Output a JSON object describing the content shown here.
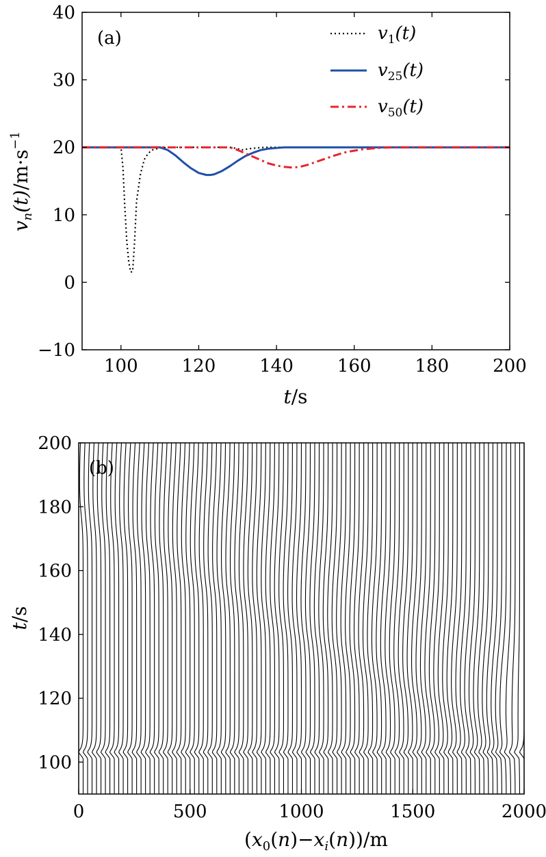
{
  "chart_data": [
    {
      "type": "line",
      "panel_label": "(a)",
      "xlabel": "t/s",
      "ylabel": "v_n(t)/m·s^-1",
      "xlim": [
        90,
        200
      ],
      "ylim": [
        -10,
        40
      ],
      "xticks": [
        100,
        120,
        140,
        160,
        180,
        200
      ],
      "yticks": [
        -10,
        0,
        10,
        20,
        30,
        40
      ],
      "xtick_labels": [
        "100",
        "120",
        "140",
        "160",
        "180",
        "200"
      ],
      "ytick_labels": [
        "−10",
        "0",
        "10",
        "20",
        "30",
        "40"
      ],
      "grid": false,
      "legend_position": "top-right",
      "series": [
        {
          "name": "v1(t)",
          "legend_base": "v",
          "legend_sub": "1",
          "legend_tail": "(t)",
          "color": "#000000",
          "style": "dotted",
          "x": [
            90,
            100,
            100.5,
            101,
            101.5,
            102,
            102.5,
            103,
            103.5,
            104,
            105,
            106,
            107,
            108,
            110,
            112,
            115,
            120,
            125,
            128,
            130,
            131,
            133,
            135,
            137,
            140,
            150,
            200
          ],
          "y": [
            20,
            20,
            17,
            11,
            6,
            3,
            1.5,
            1.6,
            6,
            12,
            16,
            18.2,
            19.1,
            19.6,
            19.9,
            20,
            20,
            20,
            20,
            20,
            19.8,
            19.6,
            19.8,
            19.9,
            20,
            20,
            20,
            20
          ]
        },
        {
          "name": "v25(t)",
          "legend_base": "v",
          "legend_sub": "25",
          "legend_tail": "(t)",
          "color": "#1f4fa8",
          "style": "solid",
          "x": [
            90,
            110,
            112,
            114,
            116,
            118,
            120,
            122,
            123,
            124,
            126,
            128,
            130,
            132,
            134,
            136,
            138,
            140,
            142,
            145,
            150,
            200
          ],
          "y": [
            20,
            20,
            19.6,
            18.8,
            17.8,
            16.9,
            16.2,
            15.9,
            15.9,
            16,
            16.5,
            17.2,
            18,
            18.7,
            19.2,
            19.6,
            19.8,
            19.9,
            20,
            20,
            20,
            20
          ]
        },
        {
          "name": "v50(t)",
          "legend_base": "v",
          "legend_sub": "50",
          "legend_tail": "(t)",
          "color": "#e8242b",
          "style": "dashdot",
          "x": [
            90,
            128,
            130,
            132,
            134,
            136,
            138,
            140,
            142,
            144,
            146,
            148,
            150,
            152,
            155,
            158,
            162,
            166,
            170,
            200
          ],
          "y": [
            20,
            20,
            19.6,
            19.1,
            18.6,
            18.1,
            17.6,
            17.3,
            17.1,
            17,
            17.1,
            17.4,
            17.8,
            18.2,
            18.8,
            19.3,
            19.7,
            19.9,
            20,
            20
          ]
        }
      ]
    },
    {
      "type": "line",
      "panel_label": "(b)",
      "xlabel": "(x0(n)−xi(n))/m",
      "ylabel": "t/s",
      "xlim": [
        0,
        2000
      ],
      "ylim": [
        90,
        200
      ],
      "xticks": [
        0,
        500,
        1000,
        1500,
        2000
      ],
      "yticks": [
        100,
        120,
        140,
        160,
        180,
        200
      ],
      "xtick_labels": [
        "0",
        "500",
        "1000",
        "1500",
        "2000"
      ],
      "ytick_labels": [
        "100",
        "120",
        "140",
        "160",
        "180",
        "200"
      ],
      "grid": false,
      "trajectories": {
        "count": 100,
        "spacing_m": 20,
        "color": "#000000",
        "description_free": true
      }
    }
  ]
}
